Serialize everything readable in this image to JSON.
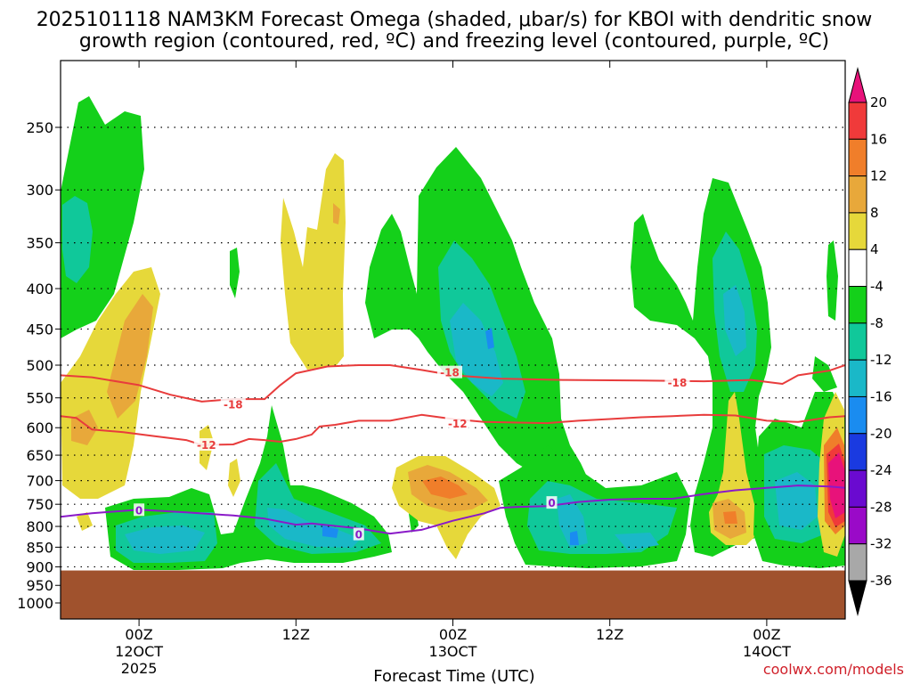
{
  "chart_data": {
    "type": "heatmap",
    "title_line1": "2025101118 NAM3KM Forecast Omega (shaded, μbar/s) for KBOI with dendritic snow",
    "title_line2": "growth region (contoured, red, ºC) and freezing level (contoured, purple, ºC)",
    "xlabel": "Forecast Time (UTC)",
    "credit": "coolwx.com/models",
    "x_range_hours": [
      -5,
      45
    ],
    "pressure_range_hpa": [
      1000,
      200
    ],
    "y_ticks": [
      "250",
      "300",
      "350",
      "400",
      "450",
      "500",
      "550",
      "600",
      "650",
      "700",
      "750",
      "800",
      "850",
      "900",
      "950",
      "1000"
    ],
    "x_ticks": [
      {
        "hour": 0,
        "line1": "00Z",
        "line2": "12OCT",
        "line3": "2025"
      },
      {
        "hour": 10,
        "line1": "12Z",
        "line2": "",
        "line3": ""
      },
      {
        "hour": 20,
        "line1": "00Z",
        "line2": "13OCT",
        "line3": ""
      },
      {
        "hour": 30,
        "line1": "12Z",
        "line2": "",
        "line3": ""
      },
      {
        "hour": 40,
        "line1": "00Z",
        "line2": "14OCT",
        "line3": ""
      }
    ],
    "colorbar": {
      "labels": [
        "20",
        "16",
        "12",
        "8",
        "4",
        "-4",
        "-8",
        "-12",
        "-16",
        "-20",
        "-24",
        "-28",
        "-32",
        "-36"
      ],
      "bins": [
        {
          "range": "> 20",
          "color": "#e8127a"
        },
        {
          "range": "16 to 20",
          "color": "#f03a3a"
        },
        {
          "range": "12 to 16",
          "color": "#f07e2a"
        },
        {
          "range": "8 to 12",
          "color": "#e8a83a"
        },
        {
          "range": "4 to 8",
          "color": "#e6d83a"
        },
        {
          "range": "-4 to 4",
          "color": "#ffffff"
        },
        {
          "range": "-8 to -4",
          "color": "#14d01a"
        },
        {
          "range": "-12 to -8",
          "color": "#10c89a"
        },
        {
          "range": "-16 to -12",
          "color": "#1ab8c8"
        },
        {
          "range": "-20 to -16",
          "color": "#1a8cf0"
        },
        {
          "range": "-24 to -20",
          "color": "#1a3ae0"
        },
        {
          "range": "-28 to -24",
          "color": "#6a0ad0"
        },
        {
          "range": "-32 to -28",
          "color": "#9a0ac8"
        },
        {
          "range": "-36 to -32",
          "color": "#a8a8a8"
        },
        {
          "range": "< -36",
          "color": "#000000"
        }
      ]
    },
    "contours": [
      {
        "name": "dendritic-minus-18",
        "color": "#e83c3c",
        "label": "-18",
        "points": [
          [
            -5,
            515
          ],
          [
            -3,
            518
          ],
          [
            0,
            530
          ],
          [
            2,
            545
          ],
          [
            4,
            556
          ],
          [
            6,
            552
          ],
          [
            8,
            552
          ],
          [
            9,
            530
          ],
          [
            10,
            512
          ],
          [
            12,
            502
          ],
          [
            14,
            500
          ],
          [
            16,
            500
          ],
          [
            18,
            507
          ],
          [
            20,
            515
          ],
          [
            23,
            520
          ],
          [
            27,
            522
          ],
          [
            32,
            523
          ],
          [
            36,
            524
          ],
          [
            39,
            522
          ],
          [
            41,
            528
          ],
          [
            42,
            515
          ],
          [
            44,
            508
          ],
          [
            45,
            500
          ]
        ],
        "label_positions": [
          [
            6,
            560
          ],
          [
            19.8,
            510
          ],
          [
            34.3,
            525
          ]
        ]
      },
      {
        "name": "dendritic-minus-12",
        "color": "#e83c3c",
        "label": "-12",
        "points": [
          [
            -5,
            580
          ],
          [
            -4,
            583
          ],
          [
            -3,
            603
          ],
          [
            -1,
            608
          ],
          [
            1,
            615
          ],
          [
            3,
            622
          ],
          [
            4,
            631
          ],
          [
            6,
            630
          ],
          [
            7,
            620
          ],
          [
            8,
            622
          ],
          [
            9,
            625
          ],
          [
            10,
            620
          ],
          [
            11,
            612
          ],
          [
            11.5,
            598
          ],
          [
            12.5,
            595
          ],
          [
            14,
            588
          ],
          [
            16,
            588
          ],
          [
            18,
            578
          ],
          [
            20,
            585
          ],
          [
            22,
            590
          ],
          [
            26,
            592
          ],
          [
            28,
            588
          ],
          [
            30,
            585
          ],
          [
            32,
            582
          ],
          [
            34,
            580
          ],
          [
            36,
            578
          ],
          [
            38,
            579
          ],
          [
            40,
            588
          ],
          [
            42,
            590
          ],
          [
            44,
            582
          ],
          [
            45,
            580
          ]
        ],
        "label_positions": [
          [
            4.3,
            630
          ],
          [
            20.3,
            592
          ]
        ]
      },
      {
        "name": "freezing-level-0",
        "color": "#8a1ac8",
        "label": "0",
        "points": [
          [
            -5,
            778
          ],
          [
            -3,
            770
          ],
          [
            0,
            762
          ],
          [
            3,
            768
          ],
          [
            6,
            775
          ],
          [
            8,
            782
          ],
          [
            10,
            796
          ],
          [
            11,
            793
          ],
          [
            14,
            805
          ],
          [
            16,
            817
          ],
          [
            18,
            808
          ],
          [
            20,
            787
          ],
          [
            22,
            770
          ],
          [
            23,
            758
          ],
          [
            24,
            756
          ],
          [
            26,
            754
          ],
          [
            28,
            745
          ],
          [
            30,
            740
          ],
          [
            32,
            738
          ],
          [
            34,
            738
          ],
          [
            36,
            728
          ],
          [
            38,
            720
          ],
          [
            40,
            715
          ],
          [
            42,
            710
          ],
          [
            44,
            712
          ],
          [
            45,
            715
          ]
        ],
        "label_positions": [
          [
            0,
            762
          ],
          [
            14,
            818
          ],
          [
            26.3,
            746
          ]
        ]
      }
    ],
    "terrain": {
      "surface_hpa": 905,
      "color": "#a0522d"
    },
    "omega_regions_approx": [
      {
        "bin": "-8 to -4",
        "hours": [
          -5,
          0
        ],
        "hpa": [
          225,
          460
        ]
      },
      {
        "bin": "4 to 8",
        "hours": [
          -5,
          1
        ],
        "hpa": [
          400,
          650
        ]
      },
      {
        "bin": "8 to 12",
        "hours": [
          -1,
          1
        ],
        "hpa": [
          420,
          560
        ]
      },
      {
        "bin": "4 to 8",
        "hours": [
          9,
          12
        ],
        "hpa": [
          260,
          480
        ]
      },
      {
        "bin": "-8 to -4",
        "hours": [
          -1,
          9
        ],
        "hpa": [
          740,
          900
        ]
      },
      {
        "bin": "-8 to -4",
        "hours": [
          17,
          25
        ],
        "hpa": [
          270,
          880
        ]
      },
      {
        "bin": "-12 to -8",
        "hours": [
          19,
          23
        ],
        "hpa": [
          350,
          570
        ]
      },
      {
        "bin": "8 to 12",
        "hours": [
          17,
          21
        ],
        "hpa": [
          680,
          760
        ]
      },
      {
        "bin": "-8 to -4",
        "hours": [
          33,
          40
        ],
        "hpa": [
          300,
          900
        ]
      },
      {
        "bin": "> 20",
        "hours": [
          43.5,
          44.5
        ],
        "hpa": [
          660,
          800
        ]
      }
    ]
  }
}
